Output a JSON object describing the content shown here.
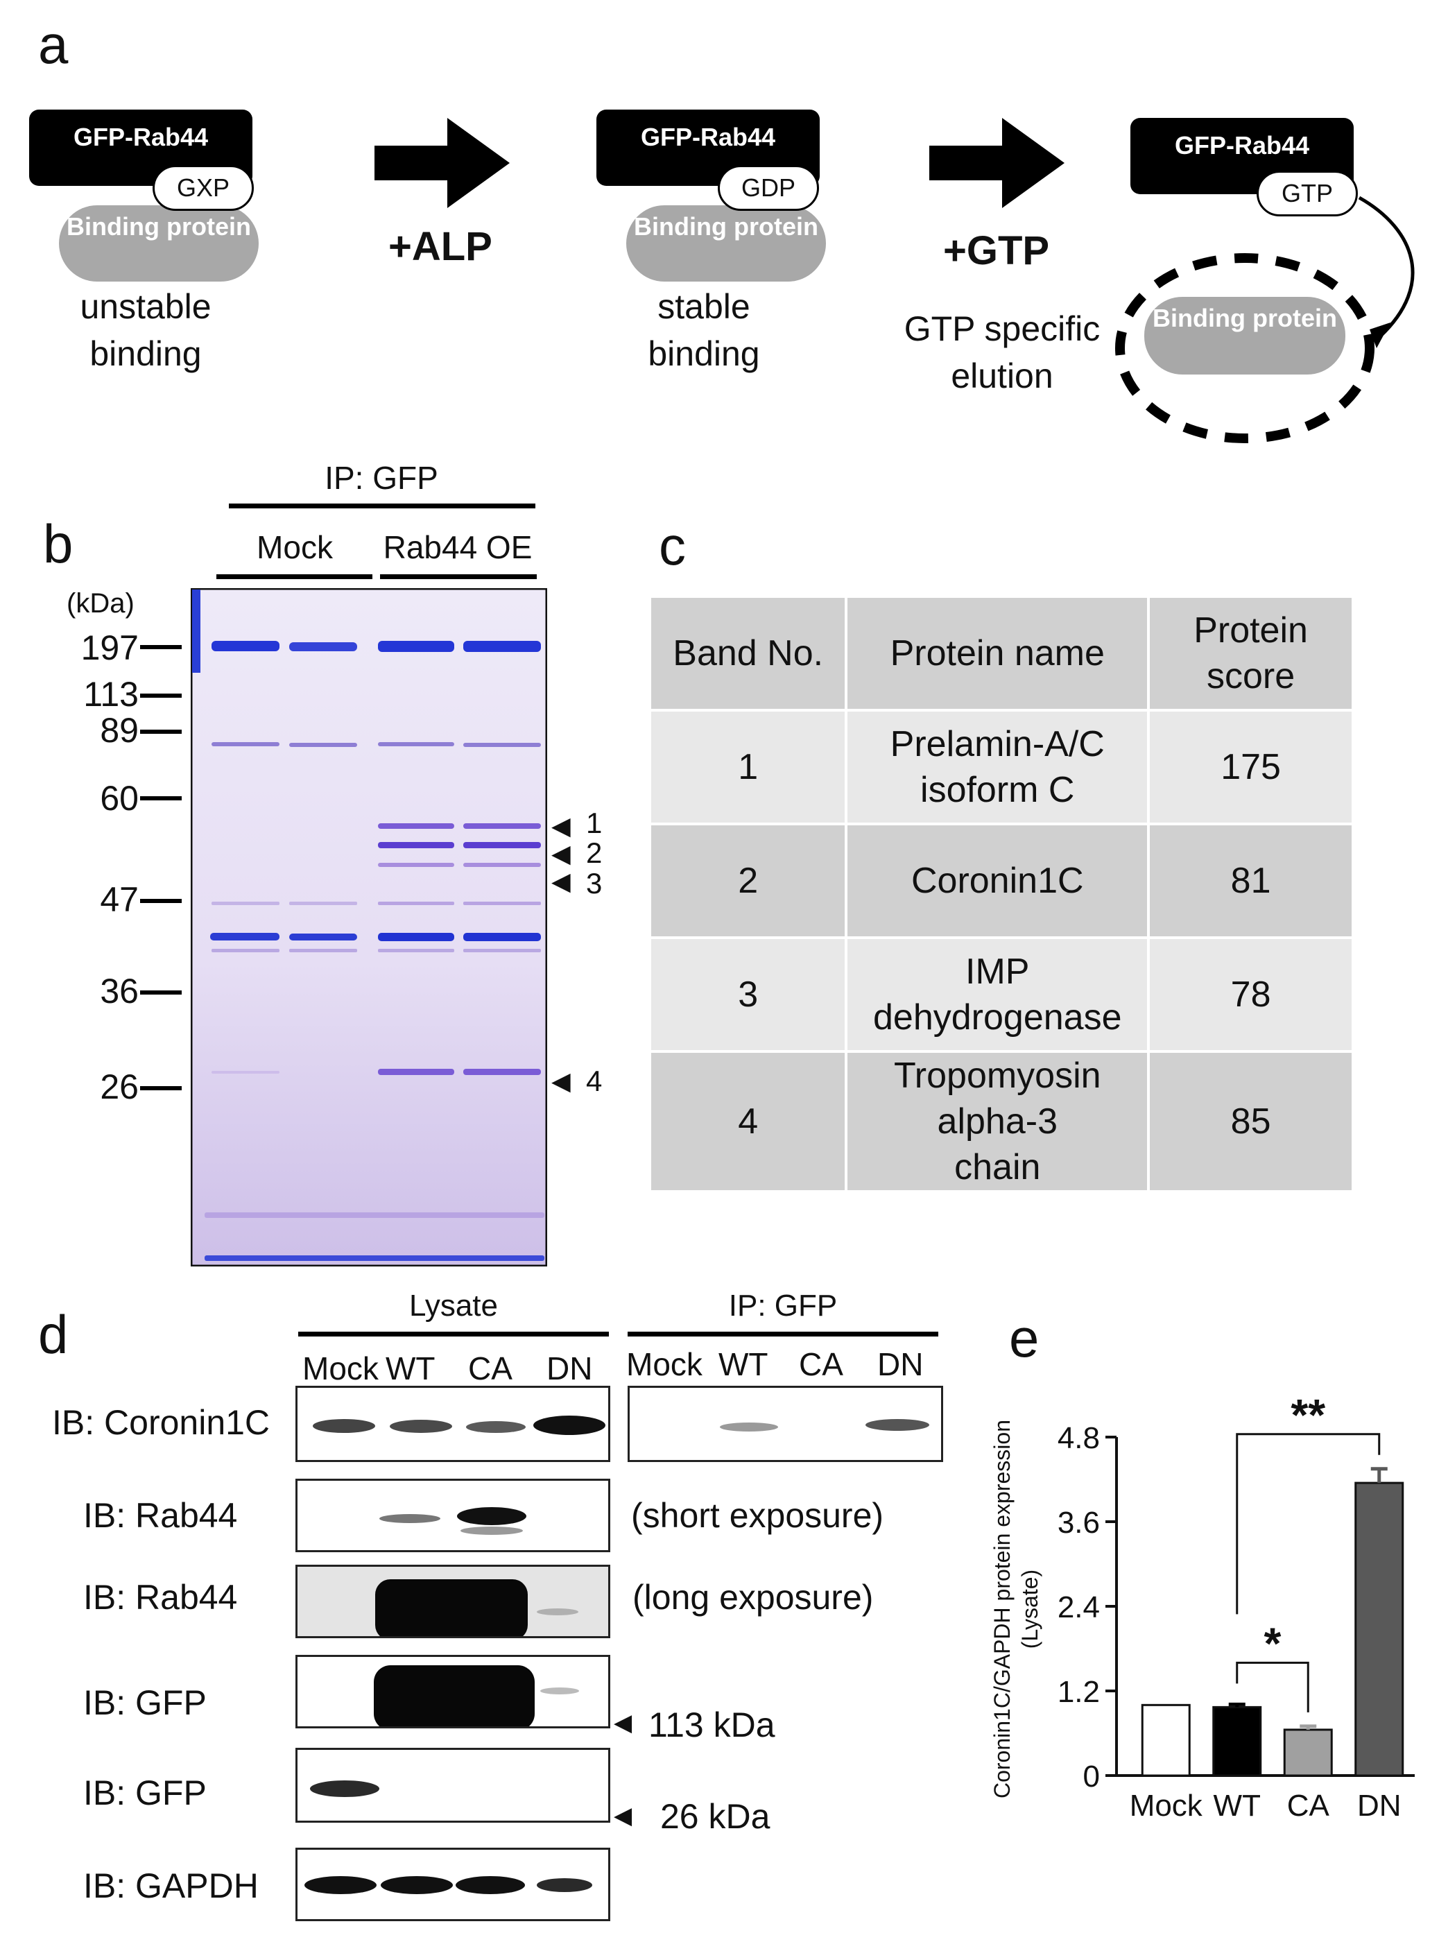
{
  "panels": {
    "a": "a",
    "b": "b",
    "c": "c",
    "d": "d",
    "e": "e"
  },
  "panel_a": {
    "step1": {
      "protein": "GFP-Rab44",
      "nucleotide": "GXP",
      "partner": "Binding protein",
      "caption": "unstable binding"
    },
    "arrow1": "+ALP",
    "step2": {
      "protein": "GFP-Rab44",
      "nucleotide": "GDP",
      "partner": "Binding protein",
      "caption": "stable binding"
    },
    "arrow2": "+GTP",
    "arrow2_caption": "GTP specific elution",
    "step3": {
      "protein": "GFP-Rab44",
      "nucleotide": "GTP",
      "partner": "Binding protein"
    }
  },
  "panel_b": {
    "ip_label": "IP: GFP",
    "groups": [
      "Mock",
      "Rab44 OE"
    ],
    "mw_unit": "(kDa)",
    "mw_markers": [
      "197",
      "113",
      "89",
      "60",
      "47",
      "36",
      "26"
    ],
    "band_numbers": [
      "1",
      "2",
      "3",
      "4"
    ]
  },
  "panel_c": {
    "headers": [
      "Band No.",
      "Protein name",
      "Protein score"
    ],
    "rows": [
      {
        "band": "1",
        "name": "Prelamin-A/C isoform C",
        "score": "175"
      },
      {
        "band": "2",
        "name": "Coronin1C",
        "score": "81"
      },
      {
        "band": "3",
        "name": "IMP dehydrogenase",
        "score": "78"
      },
      {
        "band": "4",
        "name": "Tropomyosin alpha-3 chain",
        "score": "85"
      }
    ]
  },
  "panel_d": {
    "lysate_label": "Lysate",
    "ip_label": "IP: GFP",
    "lanes": [
      "Mock",
      "WT",
      "CA",
      "DN"
    ],
    "blots": [
      "IB: Coronin1C",
      "IB: Rab44",
      "IB: Rab44",
      "IB: GFP",
      "IB: GFP",
      "IB: GAPDH"
    ],
    "short_exposure": "(short exposure)",
    "long_exposure": "(long exposure)",
    "marker_113": "113 kDa",
    "marker_26": "26 kDa"
  },
  "chart_data": {
    "type": "bar",
    "categories": [
      "Mock",
      "WT",
      "CA",
      "DN"
    ],
    "values": [
      1.0,
      0.97,
      0.65,
      4.15
    ],
    "errors": [
      0,
      0.04,
      0.05,
      0.2
    ],
    "bar_colors": [
      "#ffffff",
      "#000000",
      "#a0a0a0",
      "#595959"
    ],
    "ylim": [
      0,
      4.8
    ],
    "yticks": [
      "0",
      "1.2",
      "2.4",
      "3.6",
      "4.8"
    ],
    "ylabel_line1": "Coronin1C/GAPDH  protein expression",
    "ylabel_line2": "(Lysate)",
    "significance": [
      {
        "from": "WT",
        "to": "CA",
        "label": "*"
      },
      {
        "from": "WT",
        "to": "DN",
        "label": "**"
      }
    ]
  }
}
